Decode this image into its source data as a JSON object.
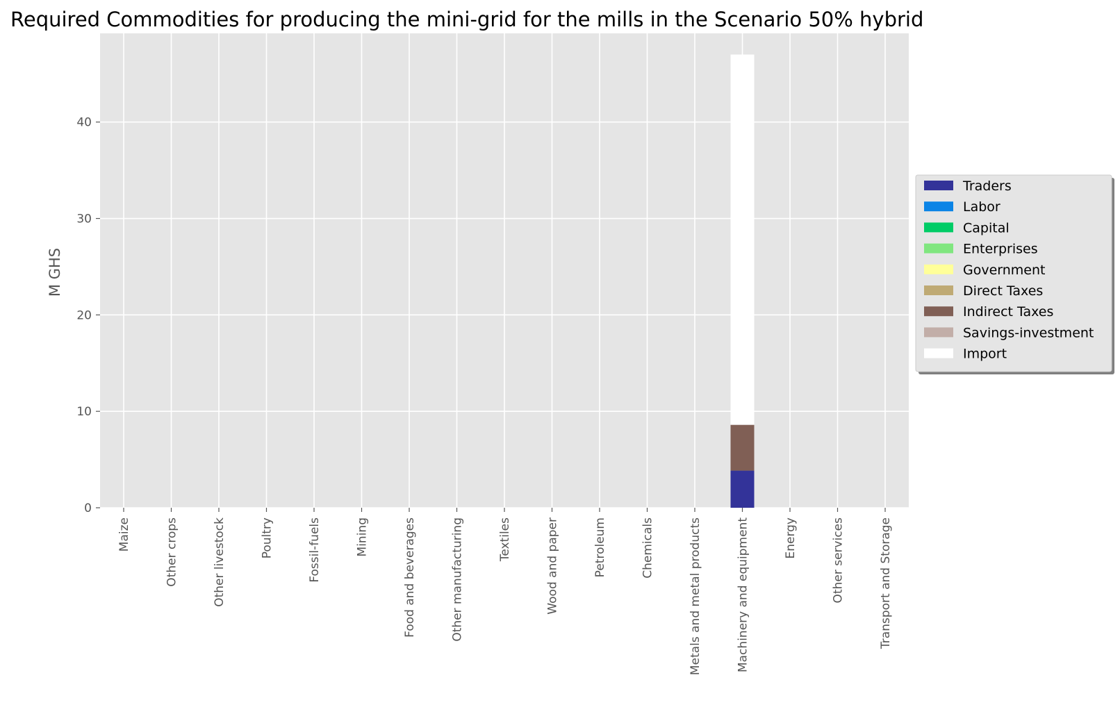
{
  "chart_data": {
    "type": "bar",
    "stacked": true,
    "title": "Required Commodities for producing the mini-grid for the mills in the Scenario 50% hybrid",
    "xlabel": "",
    "ylabel": "M GHS",
    "ylim": [
      0,
      49.2
    ],
    "yticks": [
      0,
      10,
      20,
      30,
      40
    ],
    "grid": true,
    "legend_position": "right",
    "categories": [
      "Maize",
      "Other crops",
      "Other livestock",
      "Poultry",
      "Fossil-fuels",
      "Mining",
      "Food and beverages",
      "Other manufacturing",
      "Textiles",
      "Wood and paper",
      "Petroleum",
      "Chemicals",
      "Metals and metal products",
      "Machinery and equipment",
      "Energy",
      "Other services",
      "Transport and Storage"
    ],
    "series": [
      {
        "name": "Traders",
        "color": "#333399",
        "values": [
          0,
          0,
          0,
          0,
          0,
          0,
          0,
          0,
          0,
          0,
          0,
          0,
          0,
          3.85,
          0,
          0,
          0
        ]
      },
      {
        "name": "Labor",
        "color": "#0b84e6",
        "values": [
          0,
          0,
          0,
          0,
          0,
          0,
          0,
          0,
          0,
          0,
          0,
          0,
          0,
          0,
          0,
          0,
          0
        ]
      },
      {
        "name": "Capital",
        "color": "#00cc66",
        "values": [
          0,
          0,
          0,
          0,
          0,
          0,
          0,
          0,
          0,
          0,
          0,
          0,
          0,
          0,
          0,
          0,
          0
        ]
      },
      {
        "name": "Enterprises",
        "color": "#80e67f",
        "values": [
          0,
          0,
          0,
          0,
          0,
          0,
          0,
          0,
          0,
          0,
          0,
          0,
          0,
          0,
          0,
          0,
          0
        ]
      },
      {
        "name": "Government",
        "color": "#ffff99",
        "values": [
          0,
          0,
          0,
          0,
          0,
          0,
          0,
          0,
          0,
          0,
          0,
          0,
          0,
          0,
          0,
          0,
          0
        ]
      },
      {
        "name": "Direct Taxes",
        "color": "#bfaa74",
        "values": [
          0,
          0,
          0,
          0,
          0,
          0,
          0,
          0,
          0,
          0,
          0,
          0,
          0,
          0,
          0,
          0,
          0
        ]
      },
      {
        "name": "Indirect Taxes",
        "color": "#805f55",
        "values": [
          0,
          0,
          0,
          0,
          0,
          0,
          0,
          0,
          0,
          0,
          0,
          0,
          0,
          4.75,
          0,
          0,
          0
        ]
      },
      {
        "name": "Savings-investment",
        "color": "#c2aea8",
        "values": [
          0,
          0,
          0,
          0,
          0,
          0,
          0,
          0,
          0,
          0,
          0,
          0,
          0,
          0,
          0,
          0,
          0
        ]
      },
      {
        "name": "Import",
        "color": "#ffffff",
        "values": [
          0,
          0,
          0,
          0,
          0,
          0,
          0,
          0,
          0,
          0,
          0,
          0,
          0,
          38.4,
          0,
          0,
          0
        ]
      }
    ]
  }
}
